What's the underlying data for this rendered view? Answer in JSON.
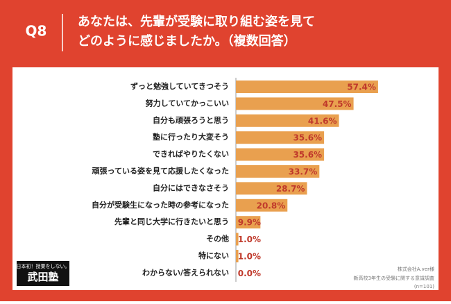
{
  "header": {
    "question": "Q8",
    "title_lines": [
      "あなたは、先輩が受験に取り組む姿を見て",
      "どのように感じましたか。（複数回答）"
    ]
  },
  "chart_data": {
    "type": "bar",
    "orientation": "horizontal",
    "color": "#e9a04f",
    "label_color": "#c0392b",
    "categories": [
      "ずっと勉強していてきつそう",
      "努力していてかっこいい",
      "自分も頑張ろうと思う",
      "塾に行ったり大変そう",
      "できればやりたくない",
      "頑張っている姿を見て応援したくなった",
      "自分にはできなさそう",
      "自分が受験生になった時の参考になった",
      "先輩と同じ大学に行きたいと思う",
      "その他",
      "特にない",
      "わからない/答えられない"
    ],
    "values": [
      57.4,
      47.5,
      41.6,
      35.6,
      35.6,
      33.7,
      28.7,
      20.8,
      9.9,
      1.0,
      1.0,
      0.0
    ],
    "value_labels": [
      "57.4%",
      "47.5%",
      "41.6%",
      "35.6%",
      "35.6%",
      "33.7%",
      "28.7%",
      "20.8%",
      "9.9%",
      "1.0%",
      "1.0%",
      "0.0%"
    ]
  },
  "logo": {
    "tagline": "日本初！授業をしない。",
    "name": "武田塾"
  },
  "notes": [
    "株式会社A.ver様",
    "新高校3年生の受験に関する意識調査",
    "(n=101)"
  ]
}
